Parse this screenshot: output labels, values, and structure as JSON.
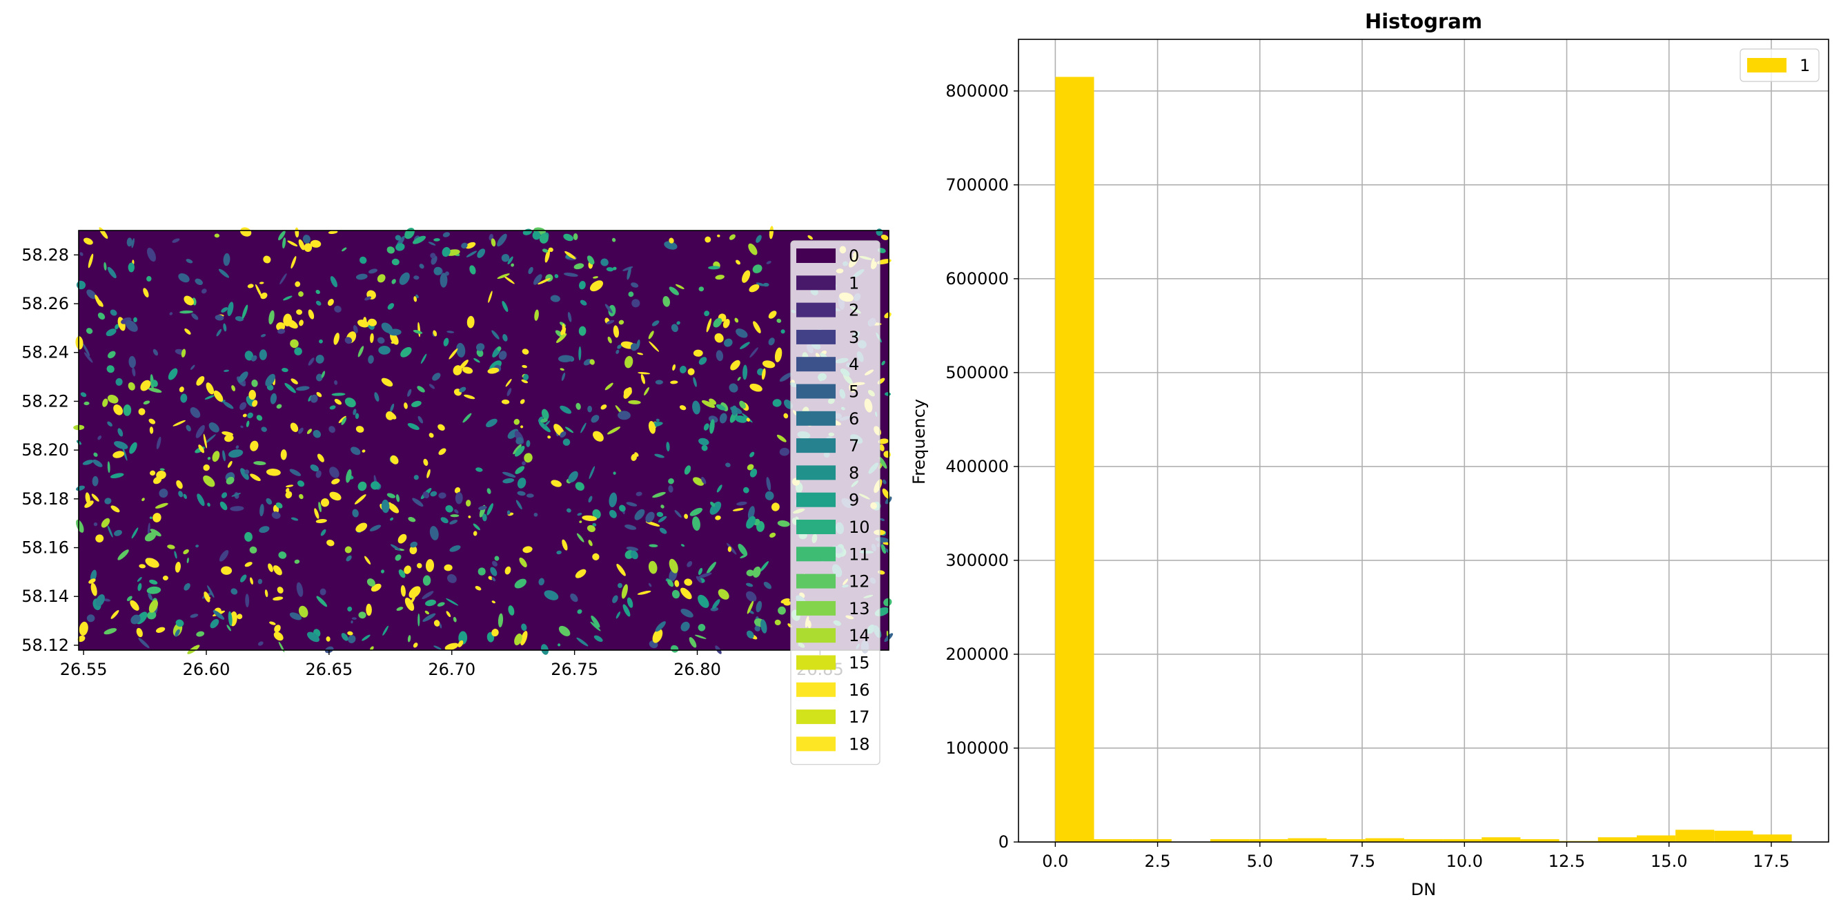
{
  "chart_data": [
    {
      "type": "heatmap",
      "title": "",
      "xlabel": "",
      "ylabel": "",
      "xlim": [
        26.548,
        26.878
      ],
      "ylim": [
        58.118,
        58.29
      ],
      "x_ticks": [
        "26.55",
        "26.60",
        "26.65",
        "26.70",
        "26.75",
        "26.80",
        "26.85"
      ],
      "y_ticks": [
        "58.12",
        "58.14",
        "58.16",
        "58.18",
        "58.20",
        "58.22",
        "58.24",
        "58.26",
        "58.28"
      ],
      "x_tick_values": [
        26.55,
        26.6,
        26.65,
        26.7,
        26.75,
        26.8,
        26.85
      ],
      "y_tick_values": [
        58.12,
        58.14,
        58.16,
        58.18,
        58.2,
        58.22,
        58.24,
        58.26,
        58.28
      ],
      "background_class": 0,
      "colormap": "viridis",
      "legend": {
        "placement": "upper-right",
        "entries": [
          {
            "label": "0",
            "color": "#440154"
          },
          {
            "label": "1",
            "color": "#48186a"
          },
          {
            "label": "2",
            "color": "#472d7b"
          },
          {
            "label": "3",
            "color": "#424086"
          },
          {
            "label": "4",
            "color": "#3b528b"
          },
          {
            "label": "5",
            "color": "#33638d"
          },
          {
            "label": "6",
            "color": "#2c728e"
          },
          {
            "label": "7",
            "color": "#26828e"
          },
          {
            "label": "8",
            "color": "#21918c"
          },
          {
            "label": "9",
            "color": "#1fa088"
          },
          {
            "label": "10",
            "color": "#28ae80"
          },
          {
            "label": "11",
            "color": "#3fbc73"
          },
          {
            "label": "12",
            "color": "#5ec962"
          },
          {
            "label": "13",
            "color": "#84d44b"
          },
          {
            "label": "14",
            "color": "#addc30"
          },
          {
            "label": "15",
            "color": "#d8e219"
          },
          {
            "label": "16",
            "color": "#fde725"
          },
          {
            "label": "17",
            "color": "#d2e21b"
          },
          {
            "label": "18",
            "color": "#fde725"
          }
        ]
      }
    },
    {
      "type": "bar",
      "title": "Histogram",
      "xlabel": "DN",
      "ylabel": "Frequency",
      "xlim": [
        -0.9,
        18.9
      ],
      "ylim": [
        0,
        855000
      ],
      "x_ticks": [
        "0.0",
        "2.5",
        "5.0",
        "7.5",
        "10.0",
        "12.5",
        "15.0",
        "17.5"
      ],
      "x_tick_values": [
        0,
        2.5,
        5,
        7.5,
        10,
        12.5,
        15,
        17.5
      ],
      "y_ticks": [
        "0",
        "100000",
        "200000",
        "300000",
        "400000",
        "500000",
        "600000",
        "700000",
        "800000"
      ],
      "y_tick_values": [
        0,
        100000,
        200000,
        300000,
        400000,
        500000,
        600000,
        700000,
        800000
      ],
      "grid": true,
      "bar_color": "#ffd700",
      "legend": {
        "placement": "top-right",
        "entries": [
          {
            "label": "1",
            "color": "#ffd700"
          }
        ]
      },
      "bins": [
        {
          "x0": 0.0,
          "x1": 0.947,
          "value": 815000
        },
        {
          "x0": 0.947,
          "x1": 1.895,
          "value": 3000
        },
        {
          "x0": 1.895,
          "x1": 2.842,
          "value": 3000
        },
        {
          "x0": 2.842,
          "x1": 3.789,
          "value": 0
        },
        {
          "x0": 3.789,
          "x1": 4.737,
          "value": 3000
        },
        {
          "x0": 4.737,
          "x1": 5.684,
          "value": 3000
        },
        {
          "x0": 5.684,
          "x1": 6.632,
          "value": 4000
        },
        {
          "x0": 6.632,
          "x1": 7.579,
          "value": 3000
        },
        {
          "x0": 7.579,
          "x1": 8.526,
          "value": 4000
        },
        {
          "x0": 8.526,
          "x1": 9.474,
          "value": 3000
        },
        {
          "x0": 9.474,
          "x1": 10.421,
          "value": 3000
        },
        {
          "x0": 10.421,
          "x1": 11.368,
          "value": 5000
        },
        {
          "x0": 11.368,
          "x1": 12.316,
          "value": 3000
        },
        {
          "x0": 12.316,
          "x1": 13.263,
          "value": 1000
        },
        {
          "x0": 13.263,
          "x1": 14.211,
          "value": 5000
        },
        {
          "x0": 14.211,
          "x1": 15.158,
          "value": 7000
        },
        {
          "x0": 15.158,
          "x1": 16.105,
          "value": 13000
        },
        {
          "x0": 16.105,
          "x1": 17.053,
          "value": 12000
        },
        {
          "x0": 17.053,
          "x1": 18.0,
          "value": 8000
        }
      ]
    }
  ]
}
